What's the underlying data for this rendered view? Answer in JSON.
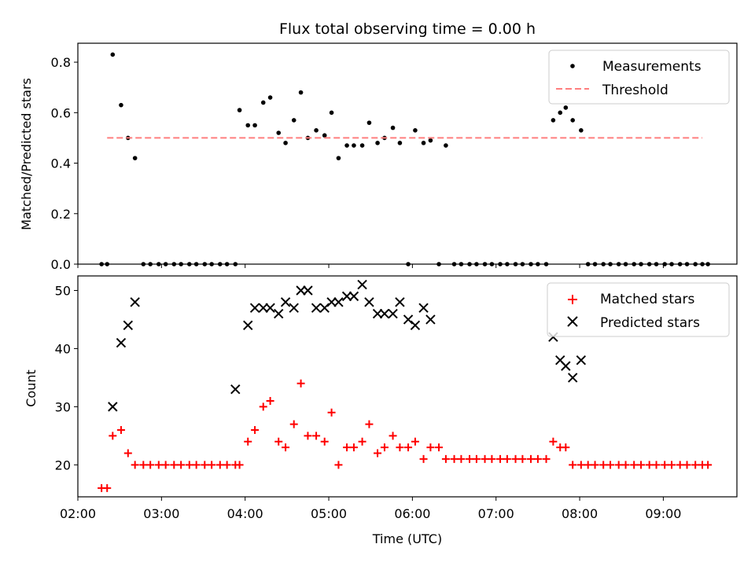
{
  "chart_data": [
    {
      "type": "scatter",
      "title": "Flux total observing time = 0.00 h",
      "xlabel": "",
      "ylabel": "Matched/Predicted stars",
      "ylim": [
        0,
        0.875
      ],
      "yticks": [
        "0.0",
        "0.2",
        "0.4",
        "0.6",
        "0.8"
      ],
      "ytick_values": [
        0,
        0.2,
        0.4,
        0.6,
        0.8
      ],
      "xlim_hours": [
        2.0,
        9.88
      ],
      "legend_position": "top-right",
      "grid": false,
      "series": [
        {
          "name": "Measurements",
          "marker": "dot",
          "color": "#000000",
          "x": [
            "02:17",
            "02:21",
            "02:25",
            "02:31",
            "02:36",
            "02:41",
            "02:47",
            "02:52",
            "02:58",
            "03:03",
            "03:09",
            "03:14",
            "03:20",
            "03:25",
            "03:31",
            "03:36",
            "03:42",
            "03:47",
            "03:53",
            "03:56",
            "04:02",
            "04:07",
            "04:13",
            "04:18",
            "04:24",
            "04:29",
            "04:35",
            "04:40",
            "04:45",
            "04:51",
            "04:57",
            "05:02",
            "05:07",
            "05:13",
            "05:18",
            "05:24",
            "05:29",
            "05:35",
            "05:40",
            "05:46",
            "05:51",
            "05:57",
            "06:02",
            "06:08",
            "06:13",
            "06:19",
            "06:24",
            "06:30",
            "06:35",
            "06:41",
            "06:46",
            "06:52",
            "06:57",
            "07:03",
            "07:08",
            "07:14",
            "07:19",
            "07:25",
            "07:30",
            "07:36",
            "07:41",
            "07:46",
            "07:50",
            "07:55",
            "08:01",
            "08:06",
            "08:11",
            "08:17",
            "08:22",
            "08:28",
            "08:33",
            "08:39",
            "08:44",
            "08:50",
            "08:55",
            "09:01",
            "09:06",
            "09:12",
            "09:17",
            "09:23",
            "09:28",
            "09:32"
          ],
          "y": [
            0,
            0,
            0.83,
            0.63,
            0.5,
            0.42,
            0,
            0,
            0,
            0,
            0,
            0,
            0,
            0,
            0,
            0,
            0,
            0,
            0,
            0.61,
            0.55,
            0.55,
            0.64,
            0.66,
            0.52,
            0.48,
            0.57,
            0.68,
            0.5,
            0.53,
            0.51,
            0.6,
            0.42,
            0.47,
            0.47,
            0.47,
            0.56,
            0.48,
            0.5,
            0.54,
            0.48,
            0,
            0.53,
            0.48,
            0.49,
            0,
            0.47,
            0,
            0,
            0,
            0,
            0,
            0,
            0,
            0,
            0,
            0,
            0,
            0,
            0,
            0.57,
            0.6,
            0.62,
            0.57,
            0.53,
            0,
            0,
            0,
            0,
            0,
            0,
            0,
            0,
            0,
            0,
            0,
            0,
            0,
            0,
            0,
            0,
            0
          ]
        },
        {
          "name": "Threshold",
          "marker": "dashed-line",
          "color": "#ff7f7f",
          "x": [
            "02:21",
            "09:28"
          ],
          "y": [
            0.5,
            0.5
          ]
        }
      ]
    },
    {
      "type": "scatter",
      "title": "",
      "xlabel": "Time (UTC)",
      "ylabel": "Count",
      "ylim": [
        14.5,
        52.5
      ],
      "yticks": [
        "20",
        "30",
        "40",
        "50"
      ],
      "ytick_values": [
        20,
        30,
        40,
        50
      ],
      "xticks": [
        "02:00",
        "03:00",
        "04:00",
        "05:00",
        "06:00",
        "07:00",
        "08:00",
        "09:00"
      ],
      "xtick_values": [
        2,
        3,
        4,
        5,
        6,
        7,
        8,
        9
      ],
      "xlim_hours": [
        2.0,
        9.88
      ],
      "legend_position": "top-right",
      "grid": false,
      "series": [
        {
          "name": "Matched stars",
          "marker": "plus",
          "color": "#ff0000",
          "x": [
            "02:17",
            "02:21",
            "02:25",
            "02:31",
            "02:36",
            "02:41",
            "02:47",
            "02:52",
            "02:58",
            "03:03",
            "03:09",
            "03:14",
            "03:20",
            "03:25",
            "03:31",
            "03:36",
            "03:42",
            "03:47",
            "03:53",
            "03:56",
            "04:02",
            "04:07",
            "04:13",
            "04:18",
            "04:24",
            "04:29",
            "04:35",
            "04:40",
            "04:45",
            "04:51",
            "04:57",
            "05:02",
            "05:07",
            "05:13",
            "05:18",
            "05:24",
            "05:29",
            "05:35",
            "05:40",
            "05:46",
            "05:51",
            "05:57",
            "06:02",
            "06:08",
            "06:13",
            "06:19",
            "06:24",
            "06:30",
            "06:35",
            "06:41",
            "06:46",
            "06:52",
            "06:57",
            "07:03",
            "07:08",
            "07:14",
            "07:19",
            "07:25",
            "07:30",
            "07:36",
            "07:41",
            "07:46",
            "07:50",
            "07:55",
            "08:01",
            "08:06",
            "08:11",
            "08:17",
            "08:22",
            "08:28",
            "08:33",
            "08:39",
            "08:44",
            "08:50",
            "08:55",
            "09:01",
            "09:06",
            "09:12",
            "09:17",
            "09:23",
            "09:28",
            "09:32"
          ],
          "y": [
            16,
            16,
            25,
            26,
            22,
            20,
            20,
            20,
            20,
            20,
            20,
            20,
            20,
            20,
            20,
            20,
            20,
            20,
            20,
            20,
            24,
            26,
            30,
            31,
            24,
            23,
            27,
            34,
            25,
            25,
            24,
            29,
            20,
            23,
            23,
            24,
            27,
            22,
            23,
            25,
            23,
            23,
            24,
            21,
            23,
            23,
            21,
            21,
            21,
            21,
            21,
            21,
            21,
            21,
            21,
            21,
            21,
            21,
            21,
            21,
            24,
            23,
            23,
            20,
            20,
            20,
            20,
            20,
            20,
            20,
            20,
            20,
            20,
            20,
            20,
            20,
            20,
            20,
            20,
            20,
            20,
            20
          ]
        },
        {
          "name": "Predicted stars",
          "marker": "x",
          "color": "#000000",
          "x": [
            "02:25",
            "02:31",
            "02:36",
            "02:41",
            "03:53",
            "04:02",
            "04:07",
            "04:13",
            "04:18",
            "04:24",
            "04:29",
            "04:35",
            "04:40",
            "04:45",
            "04:51",
            "04:57",
            "05:02",
            "05:07",
            "05:13",
            "05:18",
            "05:24",
            "05:29",
            "05:35",
            "05:40",
            "05:46",
            "05:51",
            "05:57",
            "06:02",
            "06:08",
            "06:13",
            "07:41",
            "07:46",
            "07:50",
            "07:55",
            "08:01"
          ],
          "y": [
            30,
            41,
            44,
            48,
            33,
            44,
            47,
            47,
            47,
            46,
            48,
            47,
            50,
            50,
            47,
            47,
            48,
            48,
            49,
            49,
            51,
            48,
            46,
            46,
            46,
            48,
            45,
            44,
            47,
            45,
            42,
            38,
            37,
            35,
            38
          ]
        }
      ]
    }
  ]
}
